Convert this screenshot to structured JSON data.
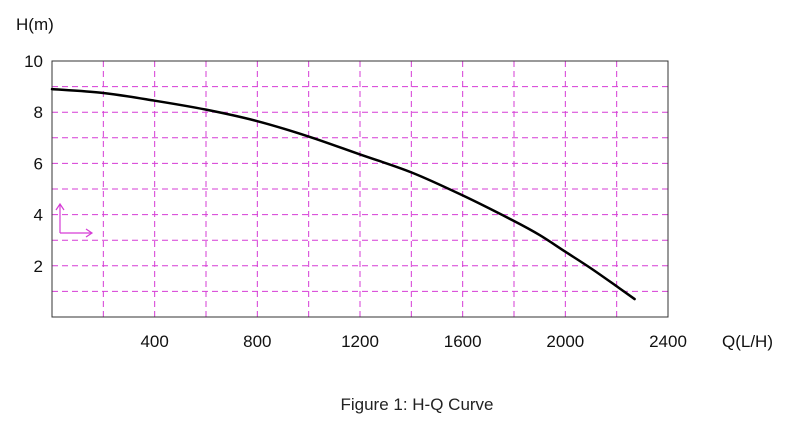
{
  "chart_data": {
    "type": "line",
    "title": "Figure 1: H-Q Curve",
    "xlabel": "Q(L/H)",
    "ylabel": "H(m)",
    "xlim": [
      0,
      2400
    ],
    "ylim": [
      0,
      10
    ],
    "x_ticks": [
      400,
      800,
      1200,
      1600,
      2000,
      2400
    ],
    "y_ticks": [
      2,
      4,
      6,
      8,
      10
    ],
    "grid": true,
    "grid_color": "#d63cd6",
    "line_color": "#000000",
    "series": [
      {
        "x": [
          0,
          200,
          400,
          600,
          800,
          1000,
          1200,
          1400,
          1600,
          1800,
          1900,
          2000,
          2100,
          2200,
          2270
        ],
        "y": [
          8.9,
          8.75,
          8.45,
          8.1,
          7.65,
          7.05,
          6.35,
          5.65,
          4.75,
          3.75,
          3.2,
          2.55,
          1.9,
          1.2,
          0.7
        ]
      }
    ]
  }
}
